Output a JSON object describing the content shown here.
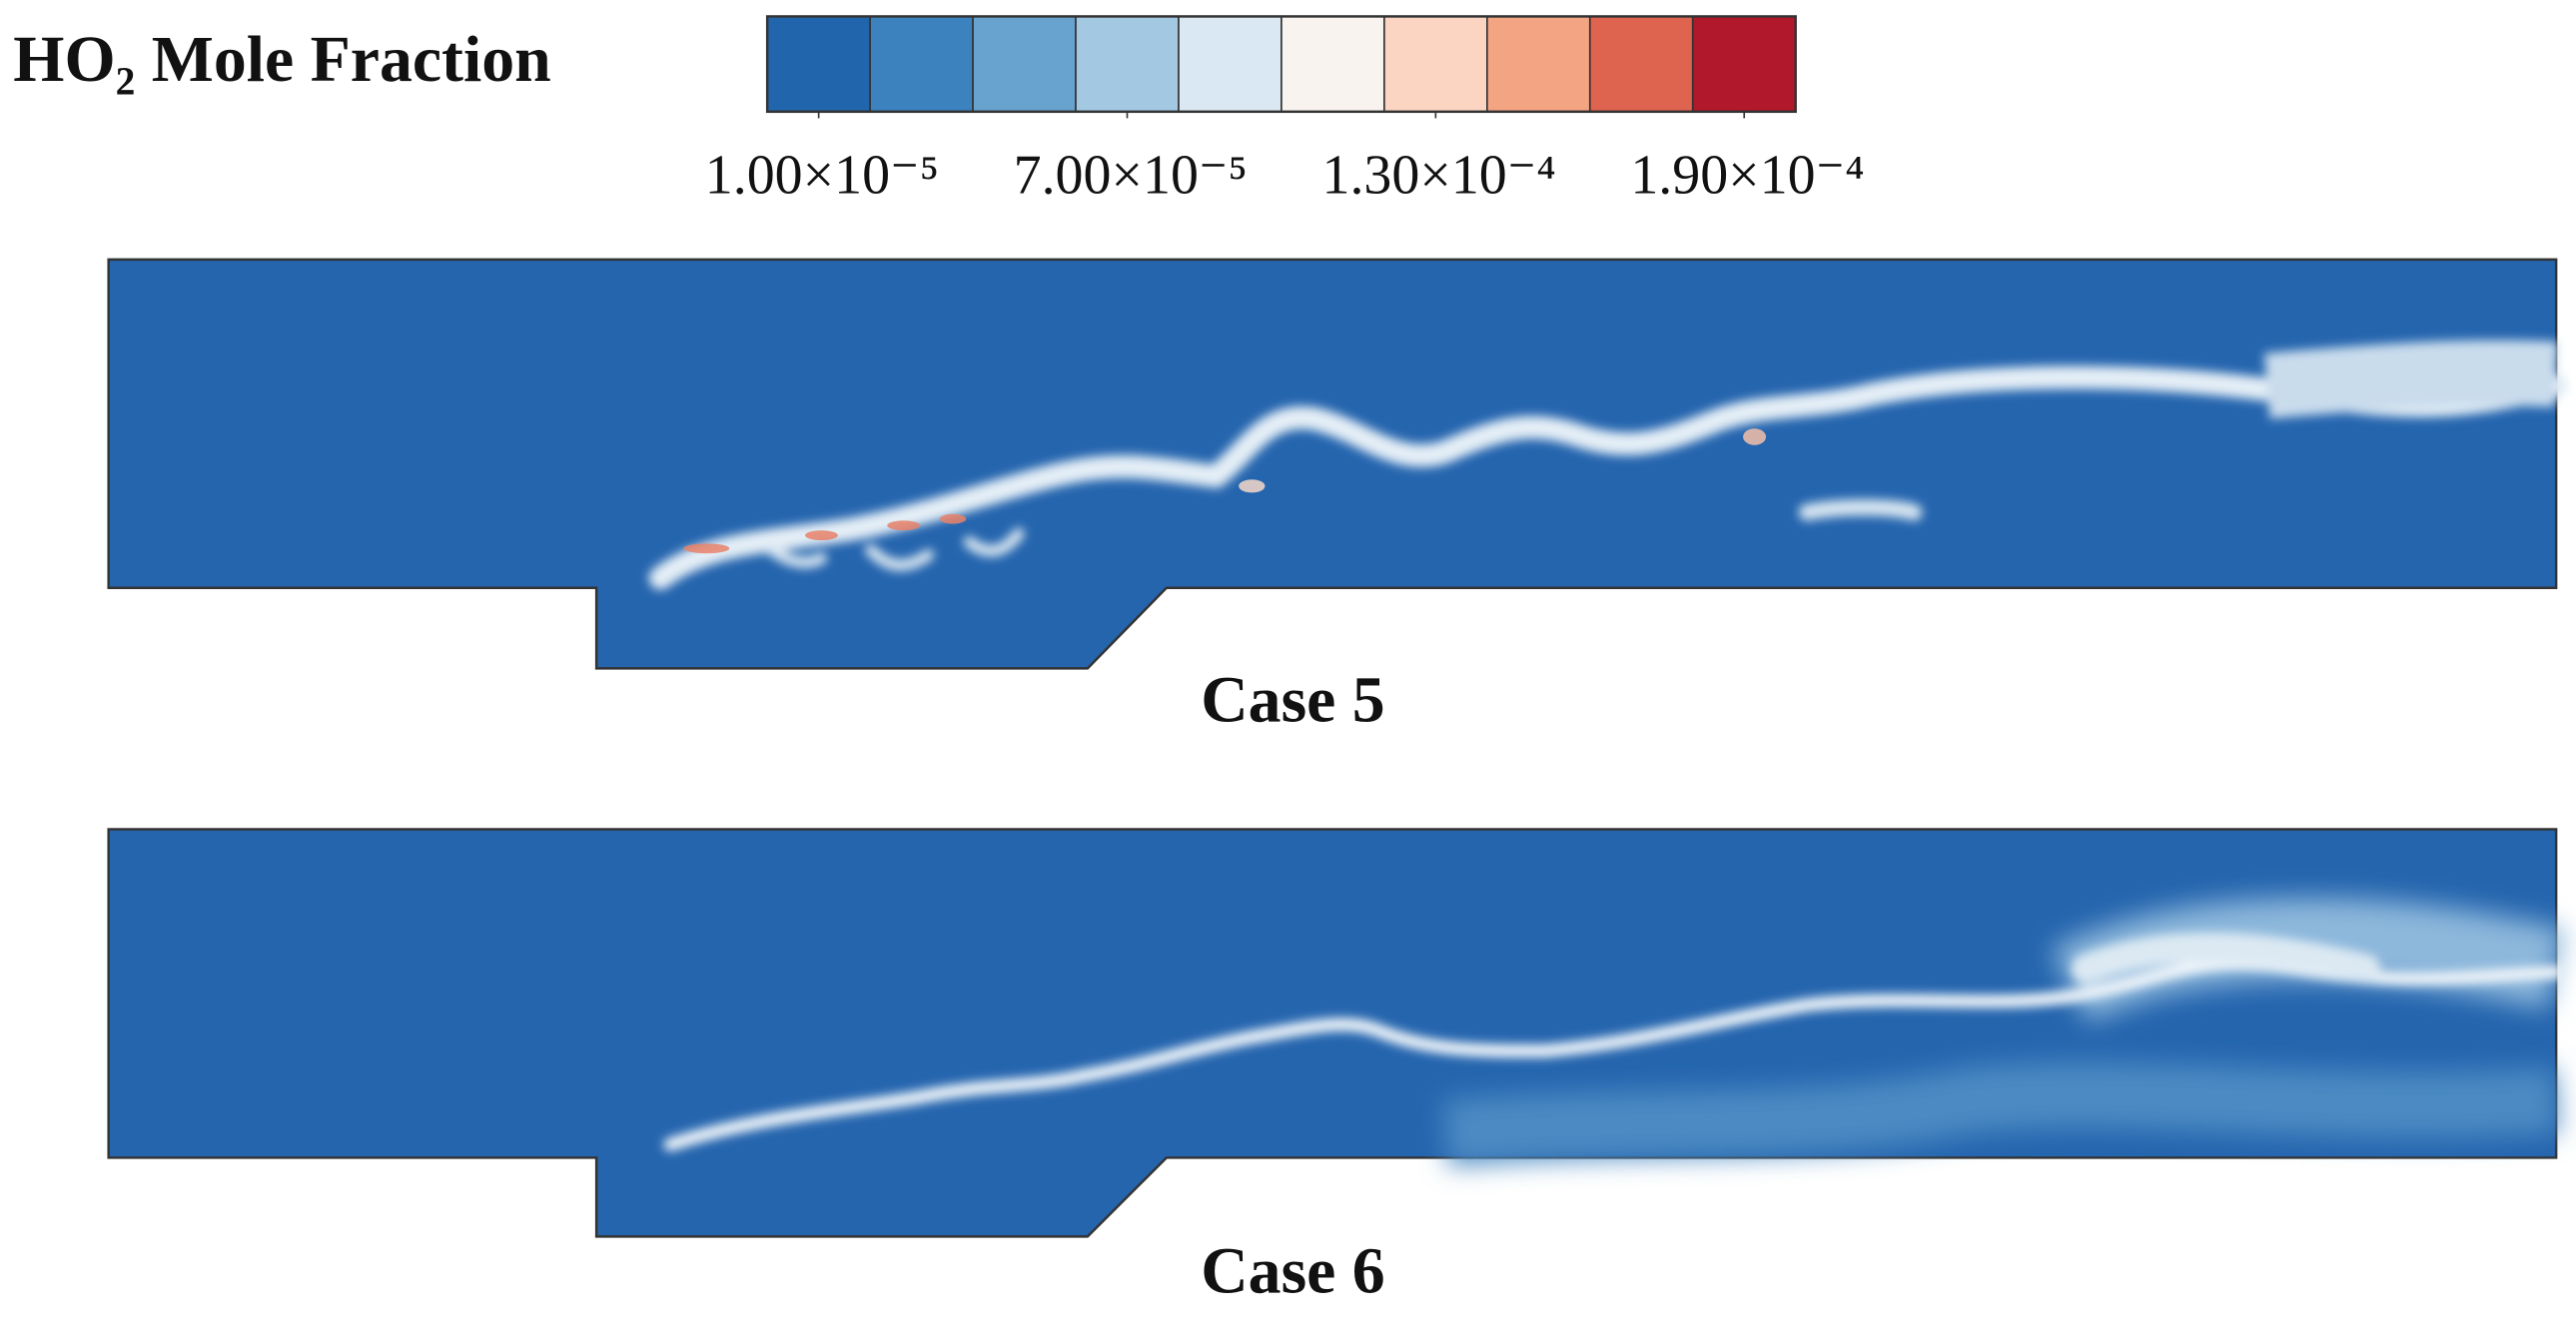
{
  "chart_data": {
    "type": "contour",
    "title": "HO₂ Mole Fraction",
    "colorbar": {
      "clim": [
        0,
        0.0002
      ],
      "ticks": [
        {
          "value": 1e-05,
          "label": "1.00×10⁻⁵"
        },
        {
          "value": 7e-05,
          "label": "7.00×10⁻⁵"
        },
        {
          "value": 0.00013,
          "label": "1.30×10⁻⁴"
        },
        {
          "value": 0.00019,
          "label": "1.90×10⁻⁴"
        }
      ],
      "colors": [
        "#2166ac",
        "#3b82bf",
        "#68a2cf",
        "#a3c8e2",
        "#d9e8f2",
        "#f8f3ef",
        "#fbd5c2",
        "#f3a482",
        "#df644f",
        "#b2182b"
      ]
    },
    "panels": [
      {
        "label": "Case 5"
      },
      {
        "label": "Case 6"
      }
    ]
  }
}
